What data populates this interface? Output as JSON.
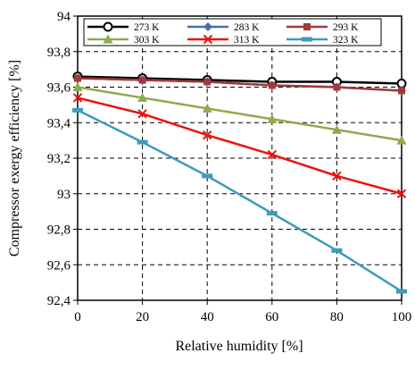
{
  "chart_data": {
    "type": "line",
    "xlabel": "Relative humidity [%]",
    "ylabel": "Compressor  exergy efficiency  [%]",
    "x": [
      0,
      20,
      40,
      60,
      80,
      100
    ],
    "x_tick_labels": [
      "0",
      "20",
      "40",
      "60",
      "80",
      "100"
    ],
    "xlim": [
      0,
      100
    ],
    "ylim": [
      92.4,
      94
    ],
    "y_ticks": [
      92.4,
      92.6,
      92.8,
      93,
      93.2,
      93.4,
      93.6,
      93.8,
      94
    ],
    "y_tick_labels": [
      "92,4",
      "92,6",
      "92,8",
      "93",
      "93,2",
      "93,4",
      "93,6",
      "93,8",
      "94"
    ],
    "grid": "dashed",
    "legend_position": "top",
    "series": [
      {
        "name": "273 K",
        "color": "#000000",
        "marker": "circle",
        "values": [
          93.66,
          93.65,
          93.64,
          93.63,
          93.63,
          93.62
        ]
      },
      {
        "name": "283 K",
        "color": "#4a6fa5",
        "marker": "diamond",
        "values": [
          93.65,
          93.64,
          93.63,
          93.61,
          93.6,
          93.58
        ]
      },
      {
        "name": "293 K",
        "color": "#a03a3a",
        "marker": "square",
        "values": [
          93.65,
          93.64,
          93.63,
          93.61,
          93.6,
          93.58
        ]
      },
      {
        "name": "303 K",
        "color": "#8faa4c",
        "marker": "triangle",
        "values": [
          93.6,
          93.54,
          93.48,
          93.42,
          93.36,
          93.3
        ]
      },
      {
        "name": "313 K",
        "color": "#ee1111",
        "marker": "x",
        "values": [
          93.54,
          93.45,
          93.33,
          93.22,
          93.1,
          93.0
        ]
      },
      {
        "name": "323 K",
        "color": "#3e9bbd",
        "marker": "bar",
        "values": [
          93.47,
          93.29,
          93.1,
          92.89,
          92.68,
          92.45
        ]
      }
    ]
  }
}
